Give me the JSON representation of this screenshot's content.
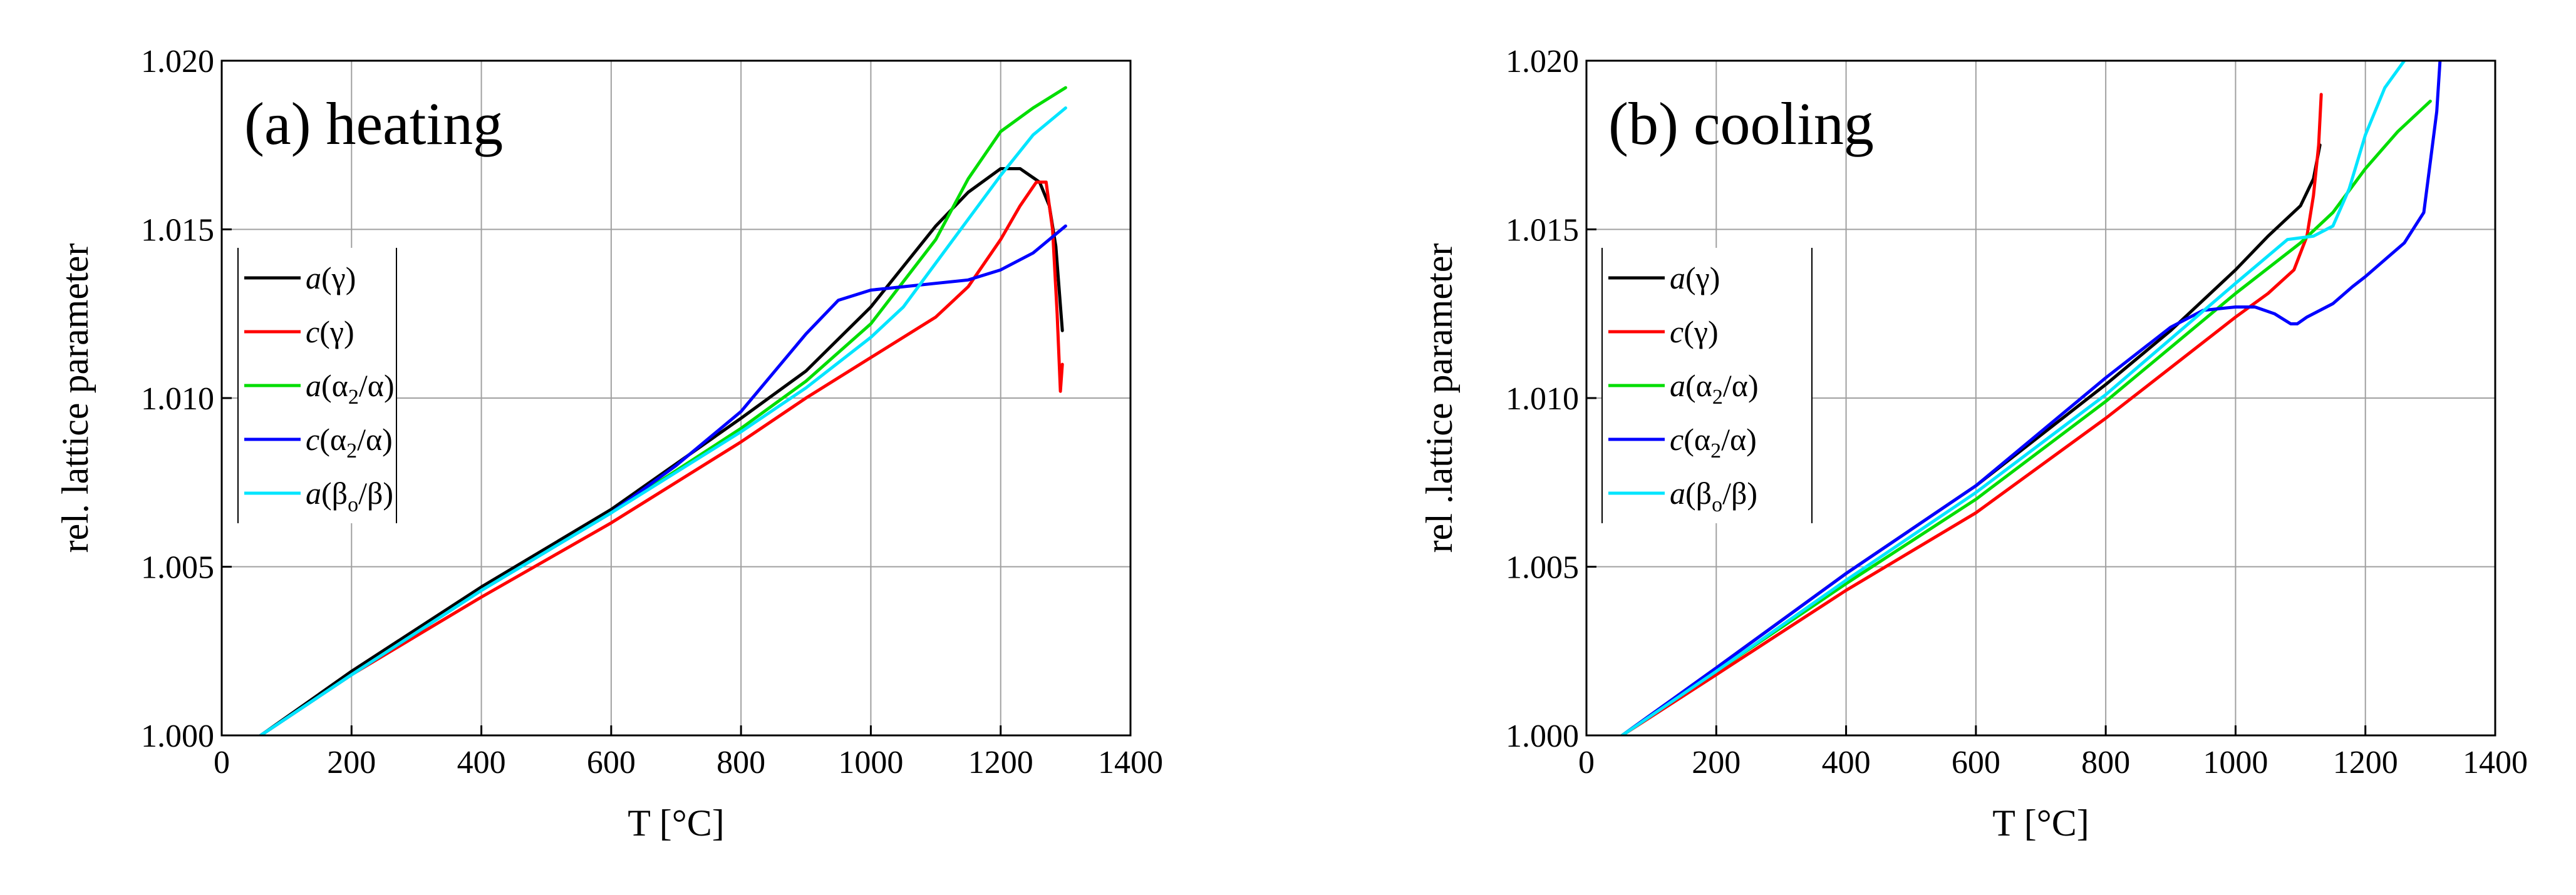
{
  "chart_data": [
    {
      "type": "line",
      "id": "heating",
      "title": "(a) heating",
      "xlabel": "T [°C]",
      "ylabel": "rel. lattice parameter",
      "xlim": [
        0,
        1400
      ],
      "ylim": [
        1.0,
        1.02
      ],
      "xticks": [
        0,
        200,
        400,
        600,
        800,
        1000,
        1200,
        1400
      ],
      "xtick_labels": [
        "0",
        "200",
        "400",
        "600",
        "800",
        "1000",
        "1200",
        "1400"
      ],
      "yticks": [
        1.0,
        1.005,
        1.01,
        1.015,
        1.02
      ],
      "ytick_labels": [
        "1.000",
        "1.005",
        "1.010",
        "1.015",
        "1.020"
      ],
      "grid": true,
      "legend_position": "middle-left",
      "series": [
        {
          "key": "a_gamma",
          "color": "#000000",
          "x": [
            60,
            200,
            400,
            600,
            800,
            900,
            1000,
            1100,
            1150,
            1200,
            1230,
            1260,
            1275,
            1285,
            1295
          ],
          "y": [
            1.0,
            1.0019,
            1.0044,
            1.0067,
            1.0094,
            1.0108,
            1.0127,
            1.0151,
            1.0161,
            1.0168,
            1.0168,
            1.0164,
            1.0157,
            1.0145,
            1.012
          ]
        },
        {
          "key": "c_gamma",
          "color": "#ff0000",
          "x": [
            60,
            200,
            400,
            600,
            800,
            900,
            1000,
            1100,
            1150,
            1200,
            1230,
            1255,
            1270,
            1280,
            1287,
            1292,
            1295
          ],
          "y": [
            1.0,
            1.0018,
            1.0041,
            1.0063,
            1.0087,
            1.01,
            1.0112,
            1.0124,
            1.0133,
            1.0147,
            1.0157,
            1.0164,
            1.0164,
            1.015,
            1.0125,
            1.0102,
            1.011
          ]
        },
        {
          "key": "a_alpha",
          "color": "#00dd00",
          "x": [
            60,
            200,
            400,
            600,
            800,
            900,
            1000,
            1100,
            1150,
            1200,
            1250,
            1300
          ],
          "y": [
            1.0,
            1.0018,
            1.0043,
            1.0066,
            1.0091,
            1.0105,
            1.0122,
            1.0147,
            1.0165,
            1.0179,
            1.0186,
            1.0192
          ]
        },
        {
          "key": "c_alpha",
          "color": "#0000ff",
          "x": [
            60,
            200,
            400,
            600,
            700,
            800,
            900,
            950,
            1000,
            1050,
            1100,
            1150,
            1200,
            1250,
            1300
          ],
          "y": [
            1.0,
            1.0018,
            1.0043,
            1.0066,
            1.008,
            1.0096,
            1.0119,
            1.0129,
            1.0132,
            1.0133,
            1.0134,
            1.0135,
            1.0138,
            1.0143,
            1.0151
          ]
        },
        {
          "key": "a_beta",
          "color": "#00e5ff",
          "x": [
            60,
            200,
            400,
            600,
            800,
            900,
            1000,
            1050,
            1100,
            1150,
            1200,
            1250,
            1300
          ],
          "y": [
            1.0,
            1.0018,
            1.0043,
            1.0066,
            1.009,
            1.0103,
            1.0118,
            1.0127,
            1.014,
            1.0153,
            1.0166,
            1.0178,
            1.0186
          ]
        }
      ]
    },
    {
      "type": "line",
      "id": "cooling",
      "title": "(b) cooling",
      "xlabel": "T [°C]",
      "ylabel": "rel .lattice parameter",
      "xlim": [
        0,
        1400
      ],
      "ylim": [
        1.0,
        1.02
      ],
      "xticks": [
        0,
        200,
        400,
        600,
        800,
        1000,
        1200,
        1400
      ],
      "xtick_labels": [
        "0",
        "200",
        "400",
        "600",
        "800",
        "1000",
        "1200",
        "1400"
      ],
      "yticks": [
        1.0,
        1.005,
        1.01,
        1.015,
        1.02
      ],
      "ytick_labels": [
        "1.000",
        "1.005",
        "1.010",
        "1.015",
        "1.020"
      ],
      "grid": true,
      "legend_position": "middle-left",
      "series": [
        {
          "key": "a_gamma",
          "color": "#000000",
          "x": [
            55,
            200,
            400,
            600,
            800,
            900,
            1000,
            1050,
            1100,
            1120,
            1130
          ],
          "y": [
            1.0,
            1.002,
            1.0048,
            1.0074,
            1.0104,
            1.012,
            1.0138,
            1.0148,
            1.0157,
            1.0165,
            1.0175
          ]
        },
        {
          "key": "c_gamma",
          "color": "#ff0000",
          "x": [
            55,
            200,
            400,
            600,
            800,
            900,
            1000,
            1050,
            1090,
            1110,
            1120,
            1128,
            1132
          ],
          "y": [
            1.0,
            1.0018,
            1.0043,
            1.0066,
            1.0094,
            1.0109,
            1.0124,
            1.0131,
            1.0138,
            1.0148,
            1.016,
            1.0175,
            1.019
          ]
        },
        {
          "key": "a_alpha",
          "color": "#00dd00",
          "x": [
            55,
            200,
            400,
            600,
            800,
            1000,
            1100,
            1150,
            1200,
            1250,
            1300
          ],
          "y": [
            1.0,
            1.0019,
            1.0045,
            1.007,
            1.0099,
            1.0131,
            1.0146,
            1.0155,
            1.0168,
            1.0179,
            1.0188
          ]
        },
        {
          "key": "c_alpha",
          "color": "#0000ff",
          "x": [
            55,
            200,
            400,
            600,
            800,
            900,
            950,
            1000,
            1030,
            1060,
            1085,
            1095,
            1110,
            1150,
            1180,
            1200,
            1230,
            1260,
            1290,
            1300,
            1310,
            1315
          ],
          "y": [
            1.0,
            1.002,
            1.0048,
            1.0074,
            1.0106,
            1.0121,
            1.0126,
            1.0127,
            1.0127,
            1.0125,
            1.0122,
            1.0122,
            1.0124,
            1.0128,
            1.0133,
            1.0136,
            1.0141,
            1.0146,
            1.0155,
            1.017,
            1.0185,
            1.02
          ]
        },
        {
          "key": "a_beta",
          "color": "#00e5ff",
          "x": [
            55,
            200,
            400,
            600,
            800,
            1000,
            1080,
            1120,
            1150,
            1175,
            1200,
            1230,
            1260,
            1270
          ],
          "y": [
            1.0,
            1.0019,
            1.0046,
            1.0072,
            1.0101,
            1.0134,
            1.0147,
            1.0148,
            1.0151,
            1.0162,
            1.0178,
            1.0192,
            1.02,
            1.0202
          ]
        }
      ]
    }
  ],
  "legend": [
    {
      "key": "a_gamma",
      "symbol": "a",
      "symbol_sub": "",
      "base": "(γ)",
      "color": "#000000"
    },
    {
      "key": "c_gamma",
      "symbol": "c",
      "symbol_sub": "",
      "base": "(γ)",
      "color": "#ff0000"
    },
    {
      "key": "a_alpha",
      "symbol": "a",
      "base": "(α",
      "sub": "2",
      "rest": "/α)",
      "color": "#00dd00"
    },
    {
      "key": "c_alpha",
      "symbol": "c",
      "base": "(α",
      "sub": "2",
      "rest": "/α)",
      "color": "#0000ff"
    },
    {
      "key": "a_beta",
      "symbol": "a",
      "base": "(β",
      "sub": "o",
      "rest": "/β)",
      "color": "#00e5ff"
    }
  ]
}
